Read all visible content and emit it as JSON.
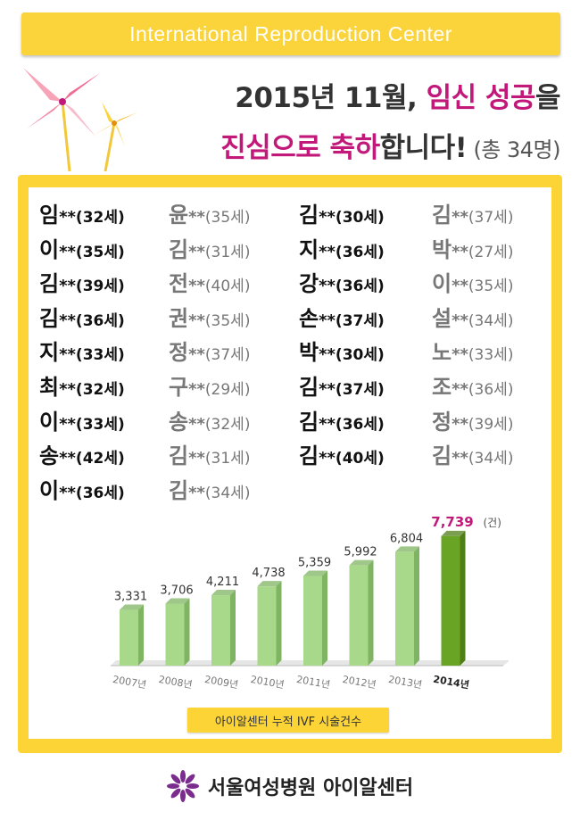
{
  "banner": {
    "text": "International Reproduction Center"
  },
  "headline": {
    "line1_plain": "2015년 11월, ",
    "line1_highlight1": "임신",
    "line1_space": " ",
    "line1_highlight2": "성공",
    "line1_tail": "을",
    "line2_highlight": "진심으로 축하",
    "line2_plain": "합니다!",
    "line2_count": " (총 34명)"
  },
  "names": [
    [
      {
        "surname": "임",
        "stars": "**",
        "age": "(32세)",
        "tone": "dark"
      },
      {
        "surname": "윤",
        "stars": "**",
        "age": "(35세)",
        "tone": "gray"
      },
      {
        "surname": "김",
        "stars": "**",
        "age": "(30세)",
        "tone": "dark"
      },
      {
        "surname": "김",
        "stars": "**",
        "age": "(37세)",
        "tone": "gray"
      }
    ],
    [
      {
        "surname": "이",
        "stars": "**",
        "age": "(35세)",
        "tone": "dark"
      },
      {
        "surname": "김",
        "stars": "**",
        "age": "(31세)",
        "tone": "gray"
      },
      {
        "surname": "지",
        "stars": "**",
        "age": "(36세)",
        "tone": "dark"
      },
      {
        "surname": "박",
        "stars": "**",
        "age": "(27세)",
        "tone": "gray"
      }
    ],
    [
      {
        "surname": "김",
        "stars": "**",
        "age": "(39세)",
        "tone": "dark"
      },
      {
        "surname": "전",
        "stars": "**",
        "age": "(40세)",
        "tone": "gray"
      },
      {
        "surname": "강",
        "stars": "**",
        "age": "(36세)",
        "tone": "dark"
      },
      {
        "surname": "이",
        "stars": "**",
        "age": "(35세)",
        "tone": "gray"
      }
    ],
    [
      {
        "surname": "김",
        "stars": "**",
        "age": "(36세)",
        "tone": "dark"
      },
      {
        "surname": "권",
        "stars": "**",
        "age": "(35세)",
        "tone": "gray"
      },
      {
        "surname": "손",
        "stars": "**",
        "age": "(37세)",
        "tone": "dark"
      },
      {
        "surname": "설",
        "stars": "**",
        "age": "(34세)",
        "tone": "gray"
      }
    ],
    [
      {
        "surname": "지",
        "stars": "**",
        "age": "(33세)",
        "tone": "dark"
      },
      {
        "surname": "정",
        "stars": "**",
        "age": "(37세)",
        "tone": "gray"
      },
      {
        "surname": "박",
        "stars": "**",
        "age": "(30세)",
        "tone": "dark"
      },
      {
        "surname": "노",
        "stars": "**",
        "age": "(33세)",
        "tone": "gray"
      }
    ],
    [
      {
        "surname": "최",
        "stars": "**",
        "age": "(32세)",
        "tone": "dark"
      },
      {
        "surname": "구",
        "stars": "**",
        "age": "(29세)",
        "tone": "gray"
      },
      {
        "surname": "김",
        "stars": "**",
        "age": "(37세)",
        "tone": "dark"
      },
      {
        "surname": "조",
        "stars": "**",
        "age": "(36세)",
        "tone": "gray"
      }
    ],
    [
      {
        "surname": "이",
        "stars": "**",
        "age": "(33세)",
        "tone": "dark"
      },
      {
        "surname": "송",
        "stars": "**",
        "age": "(32세)",
        "tone": "gray"
      },
      {
        "surname": "김",
        "stars": "**",
        "age": "(36세)",
        "tone": "dark"
      },
      {
        "surname": "정",
        "stars": "**",
        "age": "(39세)",
        "tone": "gray"
      }
    ],
    [
      {
        "surname": "송",
        "stars": "**",
        "age": "(42세)",
        "tone": "dark"
      },
      {
        "surname": "김",
        "stars": "**",
        "age": "(31세)",
        "tone": "gray"
      },
      {
        "surname": "김",
        "stars": "**",
        "age": "(40세)",
        "tone": "dark"
      },
      {
        "surname": "김",
        "stars": "**",
        "age": "(34세)",
        "tone": "gray"
      }
    ],
    [
      {
        "surname": "이",
        "stars": "**",
        "age": "(36세)",
        "tone": "dark"
      },
      {
        "surname": "김",
        "stars": "**",
        "age": "(34세)",
        "tone": "gray"
      }
    ]
  ],
  "chart_data": {
    "type": "bar",
    "title": "",
    "caption": "아이알센터 누적 IVF 시술건수",
    "unit_label": "(건)",
    "categories": [
      "2007년",
      "2008년",
      "2009년",
      "2010년",
      "2011년",
      "2012년",
      "2013년",
      "2014년"
    ],
    "values": [
      3331,
      3706,
      4211,
      4738,
      5359,
      5992,
      6804,
      7739
    ],
    "value_labels": [
      "3,331",
      "3,706",
      "4,211",
      "4,738",
      "5,359",
      "5,992",
      "6,804",
      "7,739"
    ],
    "highlight_index": 7,
    "colors": {
      "bar": "#a8d88a",
      "bar_side": "#7fb463",
      "highlight": "#6aa424",
      "highlight_side": "#4f7e17",
      "highlight_label": "#c2187a"
    }
  },
  "footer": {
    "text": "서울여성병원 아이알센터",
    "logo_icon": "purple-flower-icon"
  }
}
